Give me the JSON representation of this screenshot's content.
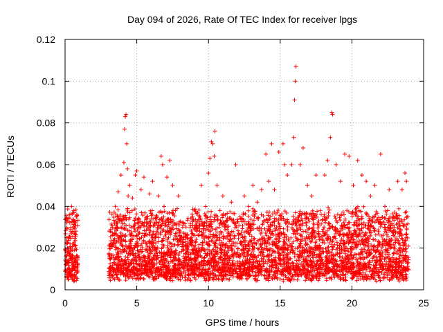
{
  "chart_data": {
    "type": "scatter",
    "title": "Day 094 of 2026, Rate Of TEC Index for receiver lpgs",
    "xlabel": "GPS time / hours",
    "ylabel": "ROTI / TECUs",
    "xlim": [
      0,
      25
    ],
    "ylim": [
      0,
      0.12
    ],
    "x_ticks": [
      "0",
      "5",
      "10",
      "15",
      "20",
      "25"
    ],
    "x_tick_values": [
      0,
      5,
      10,
      15,
      20,
      25
    ],
    "y_ticks": [
      "0",
      "0.02",
      "0.04",
      "0.06",
      "0.08",
      "0.1",
      "0.12"
    ],
    "y_tick_values": [
      0,
      0.02,
      0.04,
      0.06,
      0.08,
      0.1,
      0.12
    ],
    "grid": true,
    "marker": "+",
    "color": "#ff0000",
    "series": [
      {
        "name": "ROTI",
        "points": [
          [
            0.05,
            0.012
          ],
          [
            0.1,
            0.025
          ],
          [
            0.15,
            0.034
          ],
          [
            0.2,
            0.008
          ],
          [
            0.25,
            0.018
          ],
          [
            0.3,
            0.036
          ],
          [
            0.35,
            0.022
          ],
          [
            0.4,
            0.03
          ],
          [
            0.45,
            0.04
          ],
          [
            0.5,
            0.015
          ],
          [
            0.55,
            0.028
          ],
          [
            0.6,
            0.038
          ],
          [
            0.65,
            0.01
          ],
          [
            0.7,
            0.033
          ],
          [
            0.75,
            0.02
          ],
          [
            0.8,
            0.035
          ],
          [
            0.85,
            0.012
          ],
          [
            3.1,
            0.015
          ],
          [
            3.2,
            0.022
          ],
          [
            3.3,
            0.03
          ],
          [
            3.4,
            0.01
          ],
          [
            3.5,
            0.04
          ],
          [
            3.6,
            0.032
          ],
          [
            3.7,
            0.047
          ],
          [
            3.8,
            0.025
          ],
          [
            3.9,
            0.055
          ],
          [
            4.0,
            0.035
          ],
          [
            4.1,
            0.061
          ],
          [
            4.15,
            0.077
          ],
          [
            4.2,
            0.083
          ],
          [
            4.25,
            0.084
          ],
          [
            4.3,
            0.07
          ],
          [
            4.35,
            0.058
          ],
          [
            4.4,
            0.045
          ],
          [
            4.5,
            0.05
          ],
          [
            4.6,
            0.03
          ],
          [
            4.7,
            0.044
          ],
          [
            4.8,
            0.02
          ],
          [
            4.9,
            0.055
          ],
          [
            5.0,
            0.057
          ],
          [
            5.1,
            0.03
          ],
          [
            5.3,
            0.048
          ],
          [
            5.5,
            0.054
          ],
          [
            5.7,
            0.035
          ],
          [
            5.9,
            0.046
          ],
          [
            6.1,
            0.052
          ],
          [
            6.3,
            0.025
          ],
          [
            6.5,
            0.045
          ],
          [
            6.7,
            0.064
          ],
          [
            6.8,
            0.06
          ],
          [
            6.9,
            0.04
          ],
          [
            7.1,
            0.054
          ],
          [
            7.3,
            0.062
          ],
          [
            7.5,
            0.05
          ],
          [
            7.7,
            0.038
          ],
          [
            7.9,
            0.045
          ],
          [
            8.2,
            0.03
          ],
          [
            8.5,
            0.02
          ],
          [
            8.8,
            0.025
          ],
          [
            9.2,
            0.03
          ],
          [
            9.5,
            0.05
          ],
          [
            9.8,
            0.04
          ],
          [
            10.0,
            0.056
          ],
          [
            10.1,
            0.063
          ],
          [
            10.2,
            0.071
          ],
          [
            10.3,
            0.07
          ],
          [
            10.4,
            0.064
          ],
          [
            10.45,
            0.076
          ],
          [
            10.6,
            0.05
          ],
          [
            10.8,
            0.038
          ],
          [
            11.0,
            0.045
          ],
          [
            11.3,
            0.03
          ],
          [
            11.6,
            0.042
          ],
          [
            11.9,
            0.06
          ],
          [
            12.2,
            0.035
          ],
          [
            12.5,
            0.045
          ],
          [
            12.8,
            0.04
          ],
          [
            13.1,
            0.05
          ],
          [
            13.4,
            0.042
          ],
          [
            13.7,
            0.048
          ],
          [
            14.0,
            0.065
          ],
          [
            14.2,
            0.052
          ],
          [
            14.4,
            0.07
          ],
          [
            14.6,
            0.048
          ],
          [
            14.9,
            0.066
          ],
          [
            15.2,
            0.07
          ],
          [
            15.3,
            0.06
          ],
          [
            15.5,
            0.055
          ],
          [
            15.8,
            0.06
          ],
          [
            15.95,
            0.073
          ],
          [
            16.0,
            0.091
          ],
          [
            16.05,
            0.1
          ],
          [
            16.1,
            0.107
          ],
          [
            16.4,
            0.06
          ],
          [
            16.6,
            0.068
          ],
          [
            16.9,
            0.05
          ],
          [
            17.2,
            0.045
          ],
          [
            17.5,
            0.055
          ],
          [
            17.8,
            0.038
          ],
          [
            18.1,
            0.055
          ],
          [
            18.3,
            0.062
          ],
          [
            18.5,
            0.073
          ],
          [
            18.6,
            0.085
          ],
          [
            18.65,
            0.084
          ],
          [
            18.9,
            0.06
          ],
          [
            19.2,
            0.052
          ],
          [
            19.5,
            0.065
          ],
          [
            19.8,
            0.064
          ],
          [
            20.1,
            0.05
          ],
          [
            20.4,
            0.062
          ],
          [
            20.7,
            0.055
          ],
          [
            21.0,
            0.052
          ],
          [
            21.3,
            0.045
          ],
          [
            21.6,
            0.05
          ],
          [
            22.0,
            0.065
          ],
          [
            22.3,
            0.04
          ],
          [
            22.6,
            0.048
          ],
          [
            22.9,
            0.035
          ],
          [
            23.2,
            0.052
          ],
          [
            23.5,
            0.048
          ],
          [
            23.7,
            0.056
          ],
          [
            23.8,
            0.052
          ],
          [
            23.9,
            0.035
          ]
        ]
      }
    ]
  }
}
